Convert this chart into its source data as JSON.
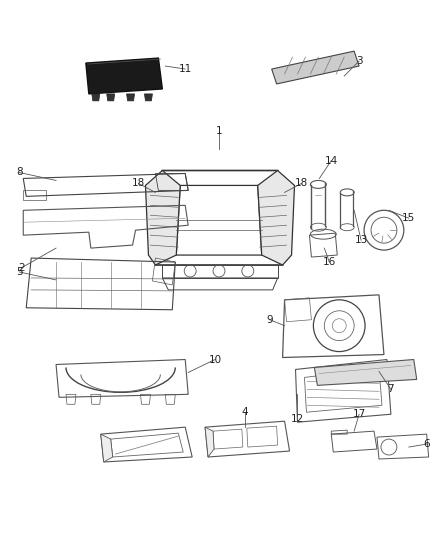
{
  "bg_color": "#ffffff",
  "fig_width": 4.38,
  "fig_height": 5.33,
  "dpi": 100,
  "line_color": "#555555",
  "label_color": "#222222",
  "font_size": 7.5
}
